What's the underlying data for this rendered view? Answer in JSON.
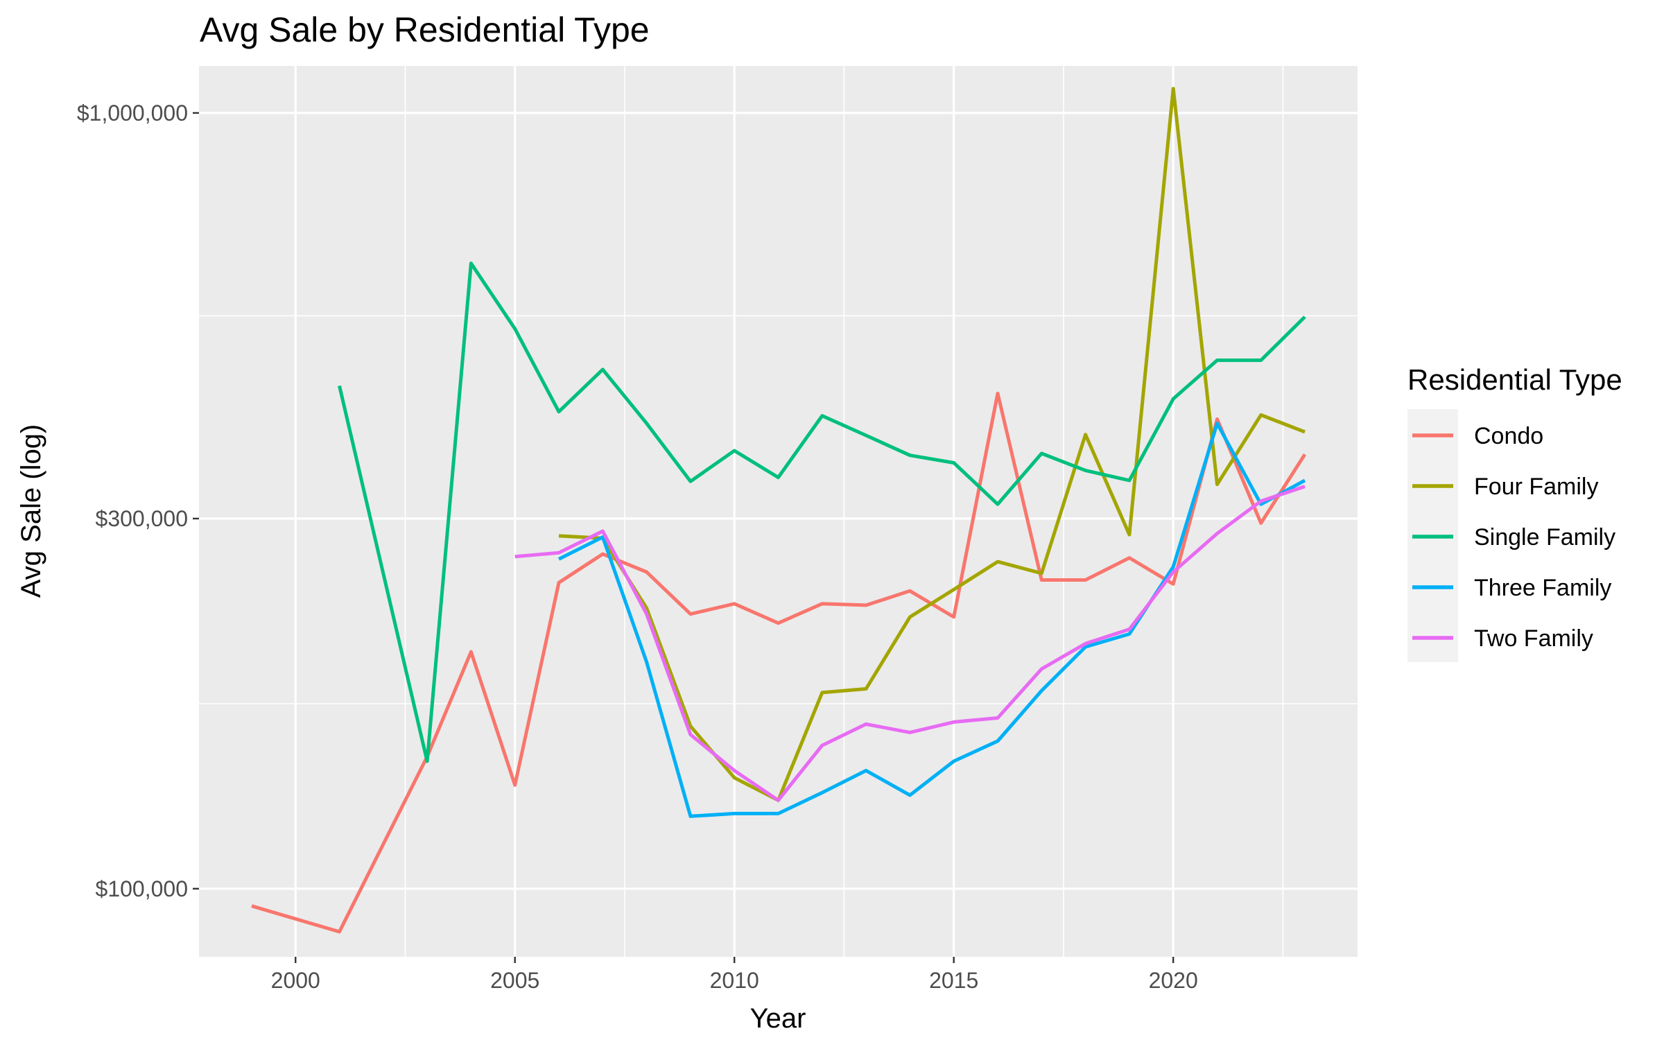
{
  "chart_data": {
    "type": "line",
    "title": "Avg Sale by Residential Type",
    "xlabel": "Year",
    "ylabel": "Avg Sale (log)",
    "y_scale": "log",
    "xlim": [
      1997.8,
      2024.2
    ],
    "ylim": [
      81700,
      1150000
    ],
    "x_ticks": [
      2000,
      2005,
      2010,
      2015,
      2020
    ],
    "y_ticks": [
      100000,
      300000,
      1000000
    ],
    "y_tick_labels": [
      "$100,000",
      "$300,000",
      "$1,000,000"
    ],
    "grid": true,
    "legend": {
      "title": "Residential Type",
      "position": "right"
    },
    "series": [
      {
        "name": "Condo",
        "color": "#F8766D",
        "x": [
          1999,
          2001,
          2003,
          2004,
          2005,
          2006,
          2007,
          2008,
          2009,
          2010,
          2011,
          2012,
          2013,
          2014,
          2015,
          2016,
          2017,
          2018,
          2019,
          2020,
          2021,
          2022,
          2023
        ],
        "y": [
          95000,
          88000,
          148000,
          202000,
          136000,
          248000,
          270000,
          256000,
          226000,
          233000,
          220000,
          233000,
          232000,
          242000,
          224000,
          435000,
          250000,
          250000,
          267000,
          247000,
          403000,
          296000,
          363000
        ]
      },
      {
        "name": "Four Family",
        "color": "#A3A500",
        "x": [
          2006,
          2007,
          2008,
          2009,
          2010,
          2011,
          2012,
          2013,
          2014,
          2015,
          2016,
          2017,
          2018,
          2019,
          2020,
          2021,
          2022,
          2023
        ],
        "y": [
          285000,
          283000,
          230000,
          162000,
          139000,
          130000,
          179000,
          181000,
          224000,
          243000,
          264000,
          255000,
          385000,
          286000,
          1075000,
          332000,
          408000,
          388000
        ]
      },
      {
        "name": "Single Family",
        "color": "#00BF7D",
        "x": [
          2001,
          2003,
          2004,
          2005,
          2006,
          2007,
          2008,
          2009,
          2010,
          2011,
          2012,
          2013,
          2014,
          2015,
          2016,
          2017,
          2018,
          2019,
          2020,
          2021,
          2022,
          2023
        ],
        "y": [
          445000,
          146000,
          640000,
          527000,
          412000,
          467000,
          398000,
          335000,
          367000,
          339000,
          407000,
          384000,
          362000,
          354000,
          313000,
          364000,
          346000,
          336000,
          428000,
          480000,
          480000,
          546000
        ]
      },
      {
        "name": "Three Family",
        "color": "#00B0F6",
        "x": [
          2006,
          2007,
          2008,
          2009,
          2010,
          2011,
          2012,
          2013,
          2014,
          2015,
          2016,
          2017,
          2018,
          2019,
          2020,
          2021,
          2022,
          2023
        ],
        "y": [
          266000,
          284000,
          196000,
          124000,
          125000,
          125000,
          133000,
          142000,
          132000,
          146000,
          155000,
          180000,
          205000,
          213000,
          260000,
          398000,
          313000,
          336000
        ]
      },
      {
        "name": "Two Family",
        "color": "#E76BF3",
        "x": [
          2005,
          2006,
          2007,
          2008,
          2009,
          2010,
          2011,
          2012,
          2013,
          2014,
          2015,
          2016,
          2017,
          2018,
          2019,
          2020,
          2021,
          2022,
          2023
        ],
        "y": [
          268000,
          271000,
          289000,
          226000,
          158000,
          142000,
          130000,
          153000,
          163000,
          159000,
          164000,
          166000,
          192000,
          207000,
          216000,
          256000,
          287000,
          316000,
          330000
        ]
      }
    ]
  }
}
